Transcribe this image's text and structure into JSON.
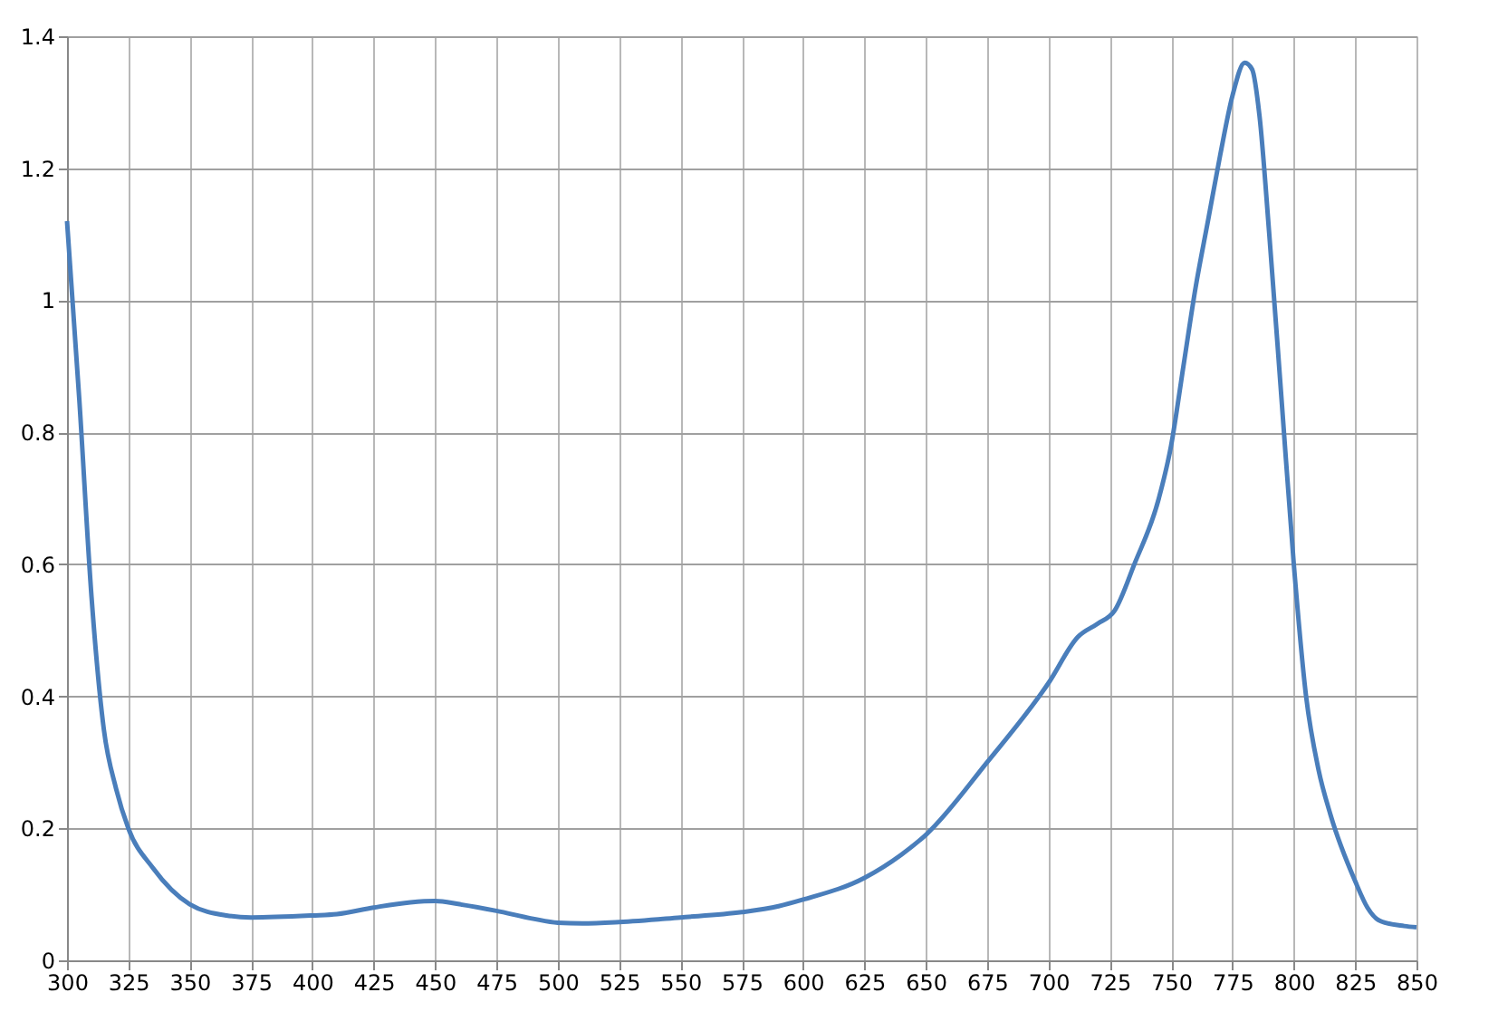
{
  "chart_data": {
    "type": "line",
    "xlim": [
      300,
      850
    ],
    "xticks": [
      300,
      325,
      350,
      375,
      400,
      425,
      450,
      475,
      500,
      525,
      550,
      575,
      600,
      625,
      650,
      675,
      700,
      725,
      750,
      775,
      800,
      825,
      850
    ],
    "ylim": [
      0,
      1.4
    ],
    "yticks": [
      0,
      0.2,
      0.4,
      0.6,
      0.8,
      1,
      1.2,
      1.4
    ],
    "grid": true,
    "marker": "none",
    "line_style": "solid",
    "series": [
      {
        "color": "#4a7ebb",
        "x": [
          300,
          305,
          310,
          315,
          320,
          325,
          335,
          350,
          365,
          375,
          400,
          410,
          425,
          440,
          450,
          460,
          475,
          490,
          500,
          510,
          525,
          550,
          575,
          590,
          600,
          625,
          640,
          650,
          675,
          700,
          712,
          720,
          727,
          735,
          745,
          750,
          755,
          760,
          765,
          770,
          775,
          780,
          783,
          786,
          790,
          795,
          800,
          805,
          810,
          815,
          825,
          830,
          835,
          845,
          850
        ],
        "values": [
          1.12,
          0.85,
          0.55,
          0.35,
          0.26,
          0.2,
          0.14,
          0.085,
          0.068,
          0.065,
          0.068,
          0.07,
          0.08,
          0.088,
          0.09,
          0.085,
          0.075,
          0.063,
          0.057,
          0.056,
          0.058,
          0.065,
          0.073,
          0.082,
          0.092,
          0.125,
          0.16,
          0.19,
          0.3,
          0.42,
          0.49,
          0.51,
          0.53,
          0.6,
          0.7,
          0.78,
          0.9,
          1.02,
          1.12,
          1.22,
          1.31,
          1.36,
          1.35,
          1.28,
          1.1,
          0.85,
          0.6,
          0.4,
          0.29,
          0.22,
          0.12,
          0.08,
          0.06,
          0.052,
          0.05
        ]
      }
    ]
  }
}
